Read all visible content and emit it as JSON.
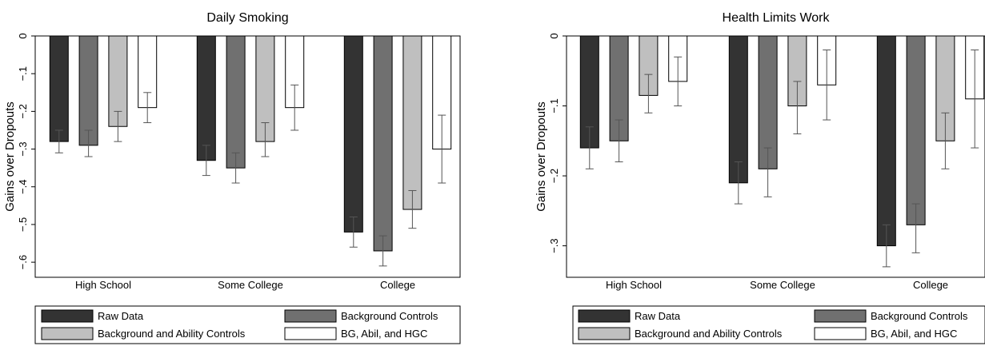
{
  "chart_data": [
    {
      "type": "bar",
      "title": "Daily Smoking",
      "ylabel": "Gains over Dropouts",
      "ylim": [
        -0.64,
        0.0
      ],
      "yticks": [
        0,
        -0.1,
        -0.2,
        -0.3,
        -0.4,
        -0.5,
        -0.6
      ],
      "ytick_labels": [
        "0",
        "−.1",
        "−.2",
        "−.3",
        "−.4",
        "−.5",
        "−.6"
      ],
      "categories": [
        "High School",
        "Some College",
        "College"
      ],
      "grid": false,
      "legend_position": "bottom",
      "series": [
        {
          "name": "Raw Data",
          "color": "#333333",
          "values": [
            -0.28,
            -0.33,
            -0.52
          ],
          "ci_low": [
            -0.31,
            -0.37,
            -0.56
          ],
          "ci_high": [
            -0.25,
            -0.29,
            -0.48
          ]
        },
        {
          "name": "Background Controls",
          "color": "#707070",
          "values": [
            -0.29,
            -0.35,
            -0.57
          ],
          "ci_low": [
            -0.32,
            -0.39,
            -0.61
          ],
          "ci_high": [
            -0.25,
            -0.31,
            -0.53
          ]
        },
        {
          "name": "Background and Ability Controls",
          "color": "#bfbfbf",
          "values": [
            -0.24,
            -0.28,
            -0.46
          ],
          "ci_low": [
            -0.28,
            -0.32,
            -0.51
          ],
          "ci_high": [
            -0.2,
            -0.23,
            -0.41
          ]
        },
        {
          "name": "BG, Abil, and HGC",
          "color": "#ffffff",
          "values": [
            -0.19,
            -0.19,
            -0.3
          ],
          "ci_low": [
            -0.23,
            -0.25,
            -0.39
          ],
          "ci_high": [
            -0.15,
            -0.13,
            -0.21
          ]
        }
      ]
    },
    {
      "type": "bar",
      "title": "Health Limits Work",
      "ylabel": "Gains over Dropouts",
      "ylim": [
        -0.345,
        0.0
      ],
      "yticks": [
        0,
        -0.1,
        -0.2,
        -0.3
      ],
      "ytick_labels": [
        "0",
        "−.1",
        "−.2",
        "−.3"
      ],
      "categories": [
        "High School",
        "Some College",
        "College"
      ],
      "grid": false,
      "legend_position": "bottom",
      "series": [
        {
          "name": "Raw Data",
          "color": "#333333",
          "values": [
            -0.16,
            -0.21,
            -0.3
          ],
          "ci_low": [
            -0.19,
            -0.24,
            -0.33
          ],
          "ci_high": [
            -0.13,
            -0.18,
            -0.27
          ]
        },
        {
          "name": "Background Controls",
          "color": "#707070",
          "values": [
            -0.15,
            -0.19,
            -0.27
          ],
          "ci_low": [
            -0.18,
            -0.23,
            -0.31
          ],
          "ci_high": [
            -0.12,
            -0.16,
            -0.24
          ]
        },
        {
          "name": "Background and Ability Controls",
          "color": "#bfbfbf",
          "values": [
            -0.085,
            -0.1,
            -0.15
          ],
          "ci_low": [
            -0.11,
            -0.14,
            -0.19
          ],
          "ci_high": [
            -0.055,
            -0.065,
            -0.11
          ]
        },
        {
          "name": "BG, Abil, and HGC",
          "color": "#ffffff",
          "values": [
            -0.065,
            -0.07,
            -0.09
          ],
          "ci_low": [
            -0.1,
            -0.12,
            -0.16
          ],
          "ci_high": [
            -0.03,
            -0.02,
            -0.02
          ]
        }
      ]
    }
  ]
}
